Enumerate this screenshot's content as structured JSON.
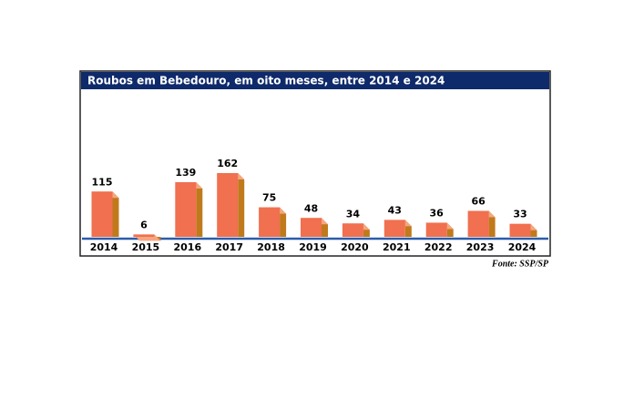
{
  "chart_data": {
    "type": "bar3d",
    "title": "Roubos em Bebedouro, em oito meses, entre 2014 e 2024",
    "source": "Fonte: SSP/SP",
    "categories": [
      "2014",
      "2015",
      "2016",
      "2017",
      "2018",
      "2019",
      "2020",
      "2021",
      "2022",
      "2023",
      "2024"
    ],
    "values": [
      115,
      6,
      139,
      162,
      75,
      48,
      34,
      43,
      36,
      66,
      33
    ],
    "color": "#f07050",
    "side_color": "#c07a1c",
    "top_color": "#f6a67e"
  }
}
